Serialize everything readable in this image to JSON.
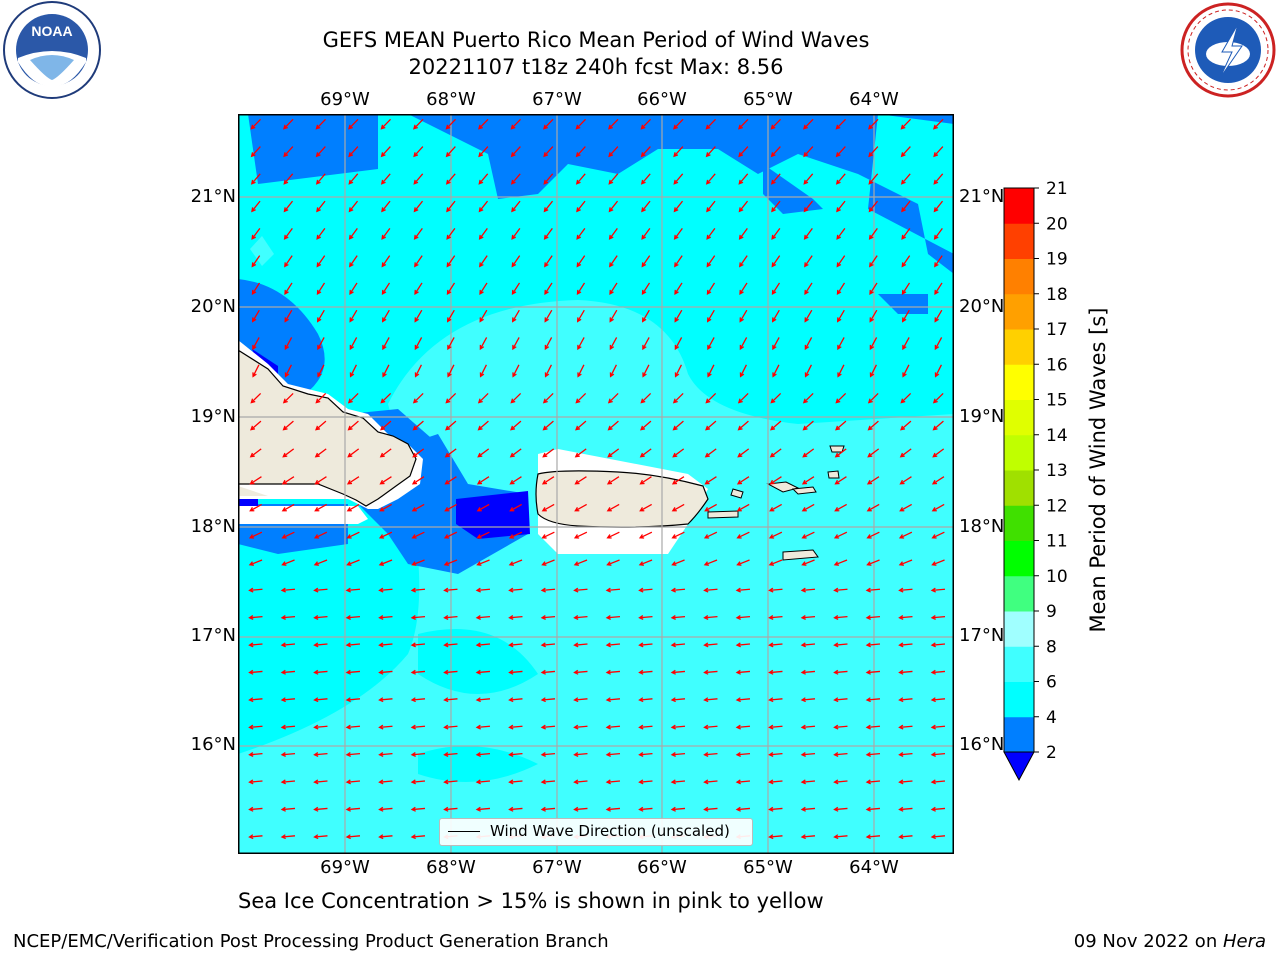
{
  "title": {
    "line1": "GEFS MEAN Puerto Rico Mean Period of Wind Waves",
    "line2": "20221107 t18z 240h fcst   Max: 8.56"
  },
  "logos": {
    "left_agency": "NOAA",
    "right_agency_text": "NATIONAL WEATHER SERVICE",
    "left_ring_text": "NATIONAL OCEANIC AND ATMOSPHERIC ADMINISTRATION · U.S. DEPARTMENT OF COMMERCE"
  },
  "map": {
    "lon_labels": [
      "69°W",
      "68°W",
      "67°W",
      "66°W",
      "65°W",
      "64°W"
    ],
    "lat_labels": [
      "21°N",
      "20°N",
      "19°N",
      "18°N",
      "17°N",
      "16°N"
    ],
    "ocean_color": "#00ffff",
    "land_color": "#eeeadc",
    "arrow_color": "#ff0000",
    "grid": true,
    "legend_label": "Wind Wave Direction (unscaled)"
  },
  "colorbar": {
    "label": "Mean Period of Wind Waves [s]",
    "ticks": [
      "2",
      "4",
      "6",
      "8",
      "9",
      "10",
      "11",
      "12",
      "13",
      "14",
      "15",
      "16",
      "17",
      "18",
      "19",
      "20",
      "21"
    ],
    "colors": [
      "#0000ff",
      "#007fff",
      "#00ffff",
      "#40ffff",
      "#a0ffff",
      "#40ff80",
      "#00ff00",
      "#40e000",
      "#a0e000",
      "#c0ff00",
      "#e0ff00",
      "#ffff00",
      "#ffd000",
      "#ffa000",
      "#ff8000",
      "#ff4000",
      "#ff0000"
    ]
  },
  "note": "Sea Ice Concentration > 15% is shown in pink to yellow",
  "footer": {
    "left": "NCEP/EMC/Verification Post Processing Product Generation Branch",
    "right_date": "09 Nov 2022 on ",
    "right_host": "Hera"
  }
}
